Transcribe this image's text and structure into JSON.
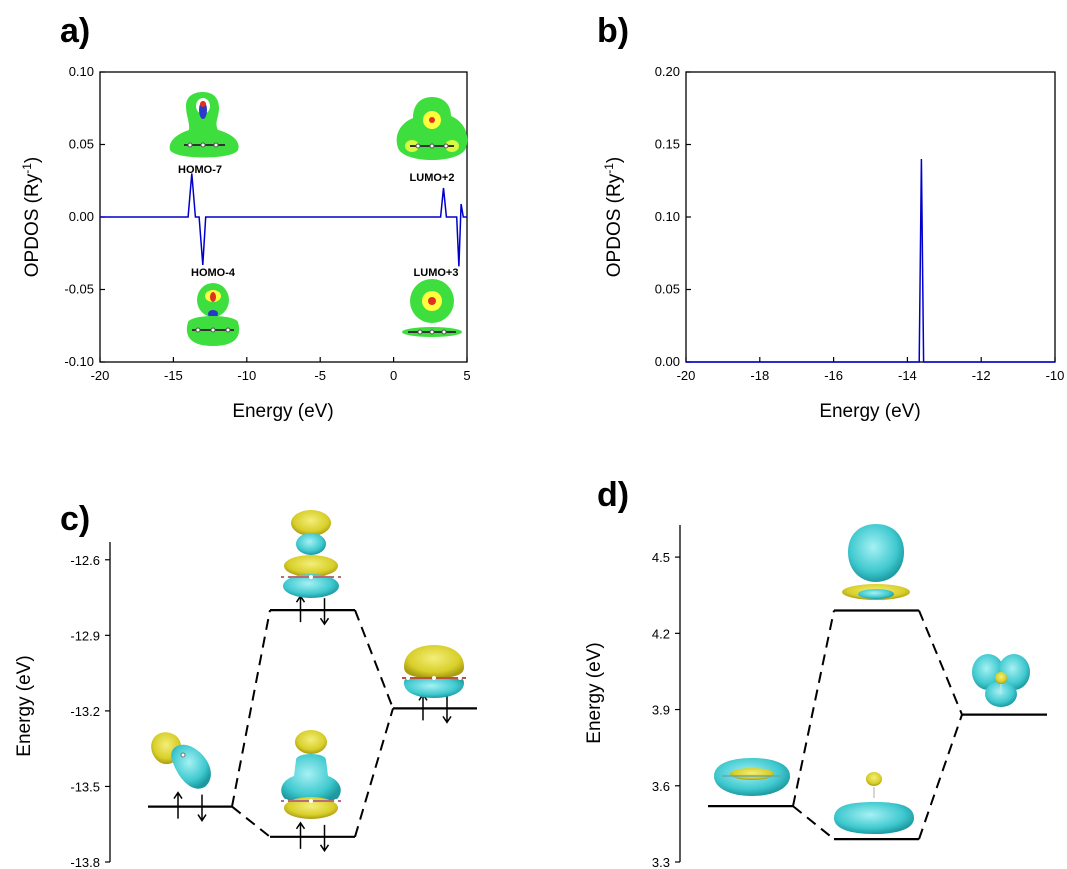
{
  "panels": {
    "a": {
      "letter": "a)"
    },
    "b": {
      "letter": "b)"
    },
    "c": {
      "letter": "c)"
    },
    "d": {
      "letter": "d)"
    }
  },
  "colors": {
    "curve": "#0000cc",
    "isosurface_yellow": "#d8d02a",
    "isosurface_cyan": "#3fc9cf",
    "density_green": "#3ede3e",
    "axis": "#000000"
  },
  "chart_data": [
    {
      "id": "a",
      "type": "line",
      "title": "",
      "xlabel": "Energy (eV)",
      "ylabel": "OPDOS (Ry",
      "ylabel_sup": "-1",
      "ylabel_end": ")",
      "xlim": [
        -20,
        5
      ],
      "ylim": [
        -0.1,
        0.1
      ],
      "xticks": [
        "-20",
        "-15",
        "-10",
        "-5",
        "0",
        "5"
      ],
      "yticks": [
        "-0.10",
        "-0.05",
        "0.00",
        "0.05",
        "0.10"
      ],
      "grid": false,
      "series": [
        {
          "x": [
            -20,
            -14.0,
            -13.75,
            -13.5,
            -13.25,
            -13.0,
            -12.8,
            -10,
            0,
            2.0,
            3.2,
            3.4,
            3.6,
            4.0,
            4.3,
            4.45,
            4.6,
            4.75,
            5
          ],
          "y": [
            0,
            0,
            0.03,
            0,
            0,
            -0.033,
            0,
            0,
            0,
            0,
            0,
            0.02,
            0,
            0,
            0,
            -0.034,
            0.009,
            0,
            0
          ]
        }
      ],
      "annotations": [
        "HOMO-7",
        "HOMO-4",
        "LUMO+2",
        "LUMO+3"
      ]
    },
    {
      "id": "b",
      "type": "line",
      "title": "",
      "xlabel": "Energy (eV)",
      "ylabel": "OPDOS (Ry",
      "ylabel_sup": "-1",
      "ylabel_end": ")",
      "xlim": [
        -20,
        -10
      ],
      "ylim": [
        0,
        0.2
      ],
      "xticks": [
        "-20",
        "-18",
        "-16",
        "-14",
        "-12",
        "-10"
      ],
      "yticks": [
        "0.00",
        "0.05",
        "0.10",
        "0.15",
        "0.20"
      ],
      "grid": false,
      "series": [
        {
          "x": [
            -20,
            -13.75,
            -13.68,
            -13.62,
            -13.56,
            -13.5,
            -10
          ],
          "y": [
            0,
            0,
            0,
            0.14,
            0,
            0,
            0
          ]
        }
      ]
    },
    {
      "id": "c",
      "type": "diagram",
      "title": "",
      "ylabel": "Energy (eV)",
      "ylim": [
        -13.8,
        -12.45
      ],
      "yticks": [
        "-12.6",
        "-12.9",
        "-13.2",
        "-13.5",
        "-13.8"
      ],
      "levels": [
        {
          "name": "left",
          "energy": -13.58,
          "spin_arrows": true
        },
        {
          "name": "upper",
          "energy": -12.8,
          "spin_arrows": true
        },
        {
          "name": "lower",
          "energy": -13.7,
          "spin_arrows": true
        },
        {
          "name": "right",
          "energy": -13.19,
          "spin_arrows": true
        }
      ]
    },
    {
      "id": "d",
      "type": "diagram",
      "title": "",
      "ylabel": "Energy (eV)",
      "ylim": [
        3.3,
        4.65
      ],
      "yticks": [
        "4.5",
        "4.2",
        "3.9",
        "3.6",
        "3.3"
      ],
      "levels": [
        {
          "name": "left",
          "energy": 3.52,
          "spin_arrows": false
        },
        {
          "name": "upper",
          "energy": 4.29,
          "spin_arrows": false
        },
        {
          "name": "lower",
          "energy": 3.39,
          "spin_arrows": false
        },
        {
          "name": "right",
          "energy": 3.88,
          "spin_arrows": false
        }
      ]
    }
  ]
}
